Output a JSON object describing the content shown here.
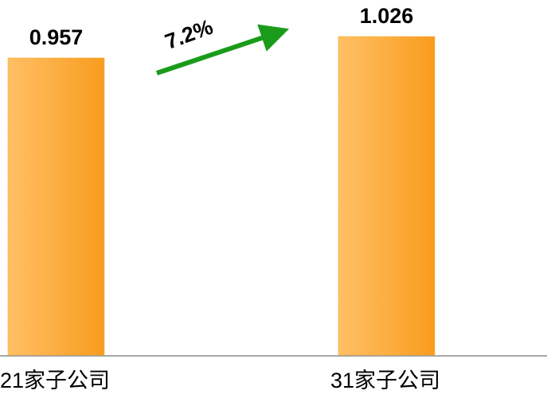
{
  "chart_data": {
    "type": "bar",
    "categories": [
      "21家子公司",
      "31家子公司"
    ],
    "values": [
      0.957,
      1.026
    ],
    "color": "#fba52a",
    "annotation": "7.2%",
    "arrow_color": "#1a9c1a"
  }
}
